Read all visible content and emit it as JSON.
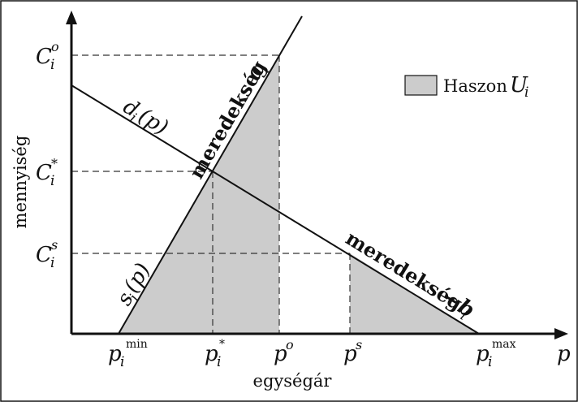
{
  "axes": {
    "x_title": "egységár",
    "y_title": "mennyiség",
    "x_var": "p"
  },
  "x_ticks": [
    {
      "main": "p",
      "sub": "i",
      "sup": "min"
    },
    {
      "main": "p",
      "sub": "i",
      "sup": "*"
    },
    {
      "main": "p",
      "sub": "",
      "sup": "o"
    },
    {
      "main": "p",
      "sub": "",
      "sup": "s"
    },
    {
      "main": "p",
      "sub": "i",
      "sup": "max"
    }
  ],
  "y_ticks": [
    {
      "main": "C",
      "sub": "i",
      "sup": "o"
    },
    {
      "main": "C",
      "sub": "i",
      "sup": "*"
    },
    {
      "main": "C",
      "sub": "i",
      "sup": "s"
    }
  ],
  "lines": {
    "supply": {
      "func": "s",
      "sub": "i",
      "arg": "(p)",
      "slope_word": "meredekség",
      "slope_sym": "a",
      "slope_sub": "i"
    },
    "demand": {
      "func": "d",
      "sub": "i",
      "arg": "(p)",
      "slope_word": "meredekség",
      "slope_sym": "−b",
      "slope_sub": "i"
    }
  },
  "legend": {
    "label": "Haszon",
    "sym": "U",
    "sub": "i"
  },
  "colors": {
    "fill": "#cccccc",
    "stroke": "#111111"
  }
}
